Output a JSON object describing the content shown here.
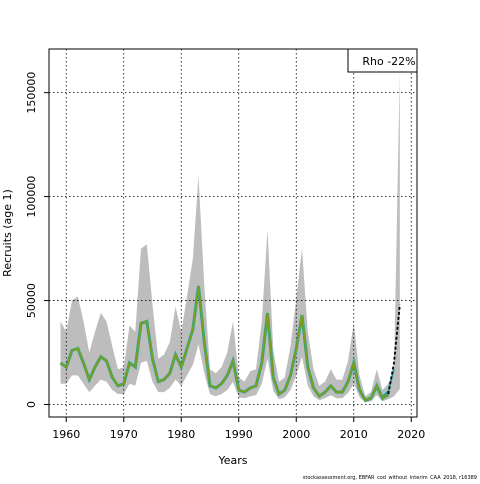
{
  "chart_data": {
    "type": "area",
    "xlabel": "Years",
    "ylabel": "Recruits (age 1)",
    "xlim": [
      1957,
      2021
    ],
    "ylim": [
      -6000,
      171000
    ],
    "xticks": [
      1960,
      1970,
      1980,
      1990,
      2000,
      2010,
      2020
    ],
    "yticks": [
      0,
      50000,
      100000,
      150000
    ],
    "grid": true,
    "legend_placement": "top-right",
    "legend_text": "Rho -22%",
    "footer_text": "stockassessment.org, EBFAR_cod_without_interim_CAA_2018, r16389",
    "colors": {
      "band": "#bdbdbd",
      "base_line": "#7a9e1e",
      "peel_lines": [
        "#1aa6a6",
        "#3d3fa0",
        "#2db37a"
      ],
      "forecast_dash": "#000000"
    },
    "years": [
      1959,
      1960,
      1961,
      1962,
      1963,
      1964,
      1965,
      1966,
      1967,
      1968,
      1969,
      1970,
      1971,
      1972,
      1973,
      1974,
      1975,
      1976,
      1977,
      1978,
      1979,
      1980,
      1981,
      1982,
      1983,
      1984,
      1985,
      1986,
      1987,
      1988,
      1989,
      1990,
      1991,
      1992,
      1993,
      1994,
      1995,
      1996,
      1997,
      1998,
      1999,
      2000,
      2001,
      2002,
      2003,
      2004,
      2005,
      2006,
      2007,
      2008,
      2009,
      2010,
      2011,
      2012,
      2013,
      2014,
      2015,
      2016,
      2017,
      2018
    ],
    "estimate": [
      20000,
      18000,
      26000,
      27000,
      20000,
      12000,
      18000,
      23000,
      21000,
      13000,
      9000,
      10000,
      20000,
      18000,
      39000,
      40000,
      22000,
      11000,
      12000,
      15000,
      24000,
      18000,
      27000,
      36000,
      57000,
      30000,
      9000,
      8000,
      10000,
      14000,
      21000,
      7000,
      6000,
      8000,
      9000,
      20000,
      44000,
      13000,
      5000,
      7000,
      14000,
      27000,
      43000,
      18000,
      8000,
      4000,
      6000,
      9000,
      6000,
      6000,
      11000,
      20000,
      7000,
      2000,
      3000,
      9000,
      3000,
      5000,
      8000,
      15000
    ],
    "ci_upper": [
      40000,
      35000,
      50000,
      52000,
      40000,
      25000,
      35000,
      44000,
      40000,
      28000,
      17000,
      18000,
      38000,
      35000,
      75000,
      77000,
      48000,
      22000,
      24000,
      30000,
      47000,
      35000,
      52000,
      70000,
      110000,
      57000,
      17000,
      15000,
      18000,
      25000,
      40000,
      13000,
      11000,
      16000,
      17000,
      40000,
      84000,
      26000,
      11000,
      13000,
      28000,
      51000,
      75000,
      35000,
      17000,
      9000,
      11000,
      17000,
      12000,
      12000,
      21000,
      39000,
      14000,
      4000,
      6000,
      17000,
      7000,
      10000,
      16000,
      28000
    ],
    "ci_lower": [
      10000,
      10000,
      14000,
      14000,
      10000,
      6000,
      9000,
      12000,
      11000,
      7000,
      5000,
      5000,
      10000,
      9000,
      20000,
      21000,
      11000,
      6000,
      6000,
      8000,
      12000,
      9000,
      14000,
      19000,
      29000,
      15000,
      5000,
      4000,
      5000,
      7000,
      11000,
      3500,
      3000,
      4000,
      4500,
      10000,
      22000,
      6500,
      2500,
      3500,
      7000,
      14000,
      23000,
      9000,
      4000,
      2000,
      3000,
      4500,
      3000,
      3000,
      5500,
      10000,
      3500,
      1000,
      1500,
      4500,
      1500,
      2500,
      4000,
      7500
    ],
    "peel_series": [
      {
        "end_year": 2017,
        "values": {
          "2010": 21000,
          "2011": 7500,
          "2012": 2200,
          "2013": 3500,
          "2014": 9500,
          "2015": 3800,
          "2016": 6500,
          "2017": 17000
        }
      },
      {
        "end_year": 2016,
        "values": {
          "2010": 20500,
          "2011": 7200,
          "2012": 2100,
          "2013": 3200,
          "2014": 8500,
          "2015": 2800,
          "2016": 4500
        }
      },
      {
        "end_year": 2015,
        "values": {
          "2010": 21500,
          "2011": 7800,
          "2012": 2300,
          "2013": 3400,
          "2014": 8000,
          "2015": 2500
        }
      }
    ],
    "forecast": {
      "years": [
        2016,
        2017,
        2018
      ],
      "values": [
        5000,
        20000,
        48000
      ],
      "upper_2018": 160000
    }
  }
}
